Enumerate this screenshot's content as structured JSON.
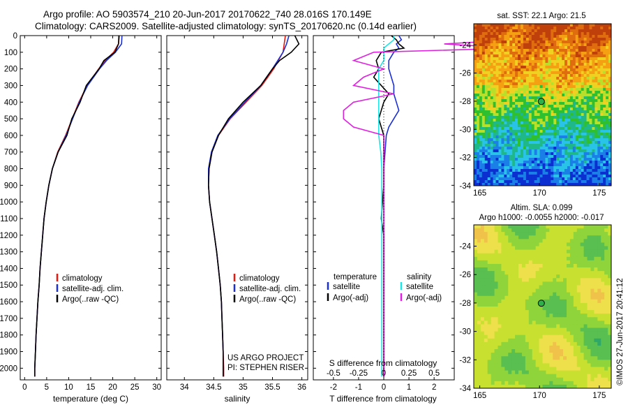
{
  "header": {
    "line1": "Argo profile: AO 5903574_210 20-Jun-2017 20170622_740 28.016S 170.149E",
    "line2": "Climatology: CARS2009. Satellite-adjusted climatology: synTS_20170620.nc (0.14d earlier)"
  },
  "depth_ticks": [
    "0",
    "100",
    "200",
    "300",
    "400",
    "500",
    "600",
    "700",
    "800",
    "900",
    "1000",
    "1100",
    "1200",
    "1300",
    "1400",
    "1500",
    "1600",
    "1700",
    "1800",
    "1900",
    "2000"
  ],
  "chart_data": [
    {
      "type": "line",
      "name": "temperature",
      "xlabel": "temperature (deg C)",
      "xlim": [
        -1,
        31
      ],
      "ylim": [
        2070,
        0
      ],
      "xticks": [
        "0",
        "5",
        "10",
        "15",
        "20",
        "25",
        "30"
      ],
      "legend": [
        "climatology",
        "satellite-adj. clim.",
        "Argo(..raw -QC)"
      ],
      "legend_position": "lower-center",
      "depth": [
        0,
        50,
        100,
        150,
        200,
        300,
        400,
        500,
        600,
        700,
        800,
        900,
        1000,
        1100,
        1200,
        1300,
        1400,
        1500,
        1600,
        1700,
        1800,
        1900,
        2000,
        2050
      ],
      "series": [
        {
          "name": "climatology",
          "color": "#e8180e",
          "values": [
            21.5,
            21.3,
            20.2,
            18.3,
            16.8,
            14.2,
            12.3,
            10.8,
            9.3,
            7.5,
            6.3,
            5.5,
            4.9,
            4.4,
            4.1,
            3.8,
            3.5,
            3.3,
            3.0,
            2.8,
            2.6,
            2.45,
            2.3,
            2.3
          ]
        },
        {
          "name": "satellite-adj. clim.",
          "color": "#1a2fd6",
          "values": [
            22.1,
            22.0,
            20.6,
            18.6,
            17.0,
            14.3,
            12.4,
            10.9,
            9.4,
            7.6,
            6.3,
            5.5,
            4.9,
            4.4,
            4.1,
            3.8,
            3.5,
            3.3,
            3.0,
            2.8,
            2.6,
            2.45,
            2.3,
            2.3
          ]
        },
        {
          "name": "Argo(..raw -QC)",
          "color": "#000000",
          "values": [
            21.4,
            21.3,
            20.5,
            18.0,
            16.9,
            14.0,
            12.6,
            10.7,
            9.6,
            7.6,
            6.3,
            5.5,
            4.9,
            4.4,
            4.1,
            3.8,
            3.5,
            3.3,
            3.0,
            2.8,
            2.6,
            2.45,
            2.3,
            2.3
          ]
        }
      ]
    },
    {
      "type": "line",
      "name": "salinity",
      "xlabel": "salinity",
      "xlim": [
        33.7,
        36.1
      ],
      "ylim": [
        2070,
        0
      ],
      "xticks": [
        "34",
        "34.5",
        "35",
        "35.5",
        "36"
      ],
      "legend": [
        "climatology",
        "satellite-adj. clim.",
        "Argo(..raw -QC)"
      ],
      "legend_position": "lower-center",
      "annotation": [
        "US ARGO PROJECT",
        "PI: STEPHEN RISER"
      ],
      "depth": [
        0,
        50,
        100,
        150,
        200,
        250,
        300,
        400,
        500,
        600,
        700,
        800,
        900,
        1000,
        1100,
        1200,
        1300,
        1400,
        1500,
        1600,
        1700,
        1800,
        1900,
        2000,
        2050
      ],
      "series": [
        {
          "name": "climatology",
          "color": "#e8180e",
          "values": [
            35.72,
            35.7,
            35.68,
            35.6,
            35.52,
            35.42,
            35.32,
            35.05,
            34.78,
            34.58,
            34.47,
            34.42,
            34.41,
            34.43,
            34.47,
            34.51,
            34.55,
            34.58,
            34.61,
            34.63,
            34.64,
            34.65,
            34.66,
            34.67,
            34.67
          ]
        },
        {
          "name": "satellite-adj. clim.",
          "color": "#1a2fd6",
          "values": [
            35.78,
            35.74,
            35.68,
            35.59,
            35.5,
            35.4,
            35.3,
            35.03,
            34.77,
            34.57,
            34.46,
            34.41,
            34.41,
            34.43,
            34.47,
            34.51,
            34.55,
            34.58,
            34.61,
            34.63,
            34.64,
            34.65,
            34.66,
            34.66,
            34.66
          ]
        },
        {
          "name": "Argo(..raw -QC)",
          "color": "#000000",
          "values": [
            35.88,
            35.95,
            35.82,
            35.62,
            35.5,
            35.4,
            35.3,
            35.0,
            34.75,
            34.58,
            34.47,
            34.42,
            34.41,
            34.43,
            34.47,
            34.51,
            34.55,
            34.58,
            34.61,
            34.63,
            34.64,
            34.65,
            34.66,
            34.66,
            34.66
          ]
        }
      ]
    },
    {
      "type": "line",
      "name": "difference from climatology",
      "xlabel": "T difference from climatology",
      "xlabel_top": "S difference from climatology",
      "xlim": [
        -2.8,
        2.8
      ],
      "ylim": [
        2070,
        0
      ],
      "xticks": [
        "-2",
        "-1",
        "0",
        "1",
        "2"
      ],
      "xticks_top": [
        "-0.5",
        "-0.25",
        "0",
        "0.25",
        "0.5"
      ],
      "legend_left_title": "temperature",
      "legend_right_title": "salinity",
      "legend": [
        "satellite",
        "Argo(-adj)",
        "satellite",
        "Argo(-adj)"
      ],
      "legend_position": "lower-center",
      "depth": [
        0,
        25,
        50,
        75,
        100,
        150,
        200,
        250,
        300,
        350,
        400,
        450,
        500,
        550,
        600,
        700,
        800,
        900,
        1000,
        1100,
        1200,
        1300,
        1400,
        1500,
        1600,
        1700,
        1800,
        1900,
        2000,
        2050
      ],
      "series": [
        {
          "name": "temperature satellite",
          "color": "#1a2fd6",
          "values": [
            0.6,
            0.7,
            0.5,
            0.6,
            0.4,
            0.2,
            0.2,
            0.3,
            0.4,
            0.4,
            0.5,
            0.6,
            0.4,
            0.2,
            0.1,
            0.05,
            0.0,
            0.0,
            0.0,
            0.0,
            0.0,
            0.0,
            0.0,
            0.0,
            0.0,
            0.0,
            0.0,
            0.0,
            0.0,
            0.0
          ]
        },
        {
          "name": "temperature Argo(-adj)",
          "color": "#000000",
          "values": [
            0.3,
            0.5,
            0.6,
            0.8,
            -0.1,
            -0.3,
            -0.2,
            -0.4,
            -0.1,
            0.2,
            0.0,
            -0.1,
            -0.2,
            -0.1,
            0.0,
            0.0,
            0.0,
            0.0,
            -0.05,
            -0.1,
            0.0,
            0.0,
            0.0,
            0.0,
            0.0,
            0.0,
            0.0,
            0.0,
            0.0,
            0.0
          ]
        },
        {
          "name": "salinity satellite",
          "color": "#1ce5e5",
          "values": [
            0.1,
            0.1,
            0.05,
            0.0,
            0.0,
            0.0,
            -0.05,
            -0.05,
            -0.05,
            -0.05,
            -0.05,
            -0.05,
            -0.05,
            -0.05,
            -0.05,
            -0.03,
            -0.02,
            -0.02,
            -0.02,
            -0.02,
            -0.02,
            -0.02,
            -0.02,
            -0.02,
            -0.02,
            -0.02,
            -0.02,
            -0.02,
            -0.02,
            -0.02
          ]
        },
        {
          "name": "salinity Argo(-adj)",
          "color": "#e020e0",
          "values": [
            1.2,
            1.3,
            0.6,
            1.3,
            -0.1,
            -0.3,
            0.0,
            -0.2,
            -0.3,
            0.1,
            -0.3,
            -0.4,
            -0.4,
            -0.3,
            0.0,
            0.0,
            0.0,
            0.0,
            0.0,
            0.0,
            0.0,
            0.0,
            0.0,
            0.0,
            0.0,
            0.0,
            0.0,
            0.0,
            0.0,
            0.0
          ]
        }
      ]
    },
    {
      "type": "heatmap",
      "name": "SST map",
      "title": "sat. SST: 22.1  Argo: 21.5",
      "xlim": [
        164.5,
        176
      ],
      "ylim": [
        -34,
        -22.5
      ],
      "xticks": [
        "165",
        "170",
        "175"
      ],
      "yticks": [
        "-24",
        "-26",
        "-28",
        "-30",
        "-32",
        "-34"
      ],
      "marker": {
        "lon": 170.149,
        "lat": -28.016
      },
      "colors": [
        "#0b2fd0",
        "#1a7fe6",
        "#29c3e8",
        "#1fb88a",
        "#2fc02f",
        "#b8e02a",
        "#f0d020",
        "#f5a012",
        "#e06c10",
        "#c0400c"
      ]
    },
    {
      "type": "heatmap",
      "name": "SLA map",
      "title": "Altim. SLA: 0.099",
      "subtitle": "Argo h1000: -0.0055 h2000: -0.017",
      "xlim": [
        164.5,
        176
      ],
      "ylim": [
        -34,
        -22.5
      ],
      "xticks": [
        "165",
        "170",
        "175"
      ],
      "yticks": [
        "-24",
        "-26",
        "-28",
        "-30",
        "-32",
        "-34"
      ],
      "marker": {
        "lon": 170.149,
        "lat": -28.016
      },
      "colors": [
        "#2fa868",
        "#58bf50",
        "#8fd43a",
        "#c8e030",
        "#eee04a",
        "#f0c24a"
      ]
    }
  ],
  "footer": {
    "credit": "©IMOS 27-Jun-2017 20:41:12"
  }
}
